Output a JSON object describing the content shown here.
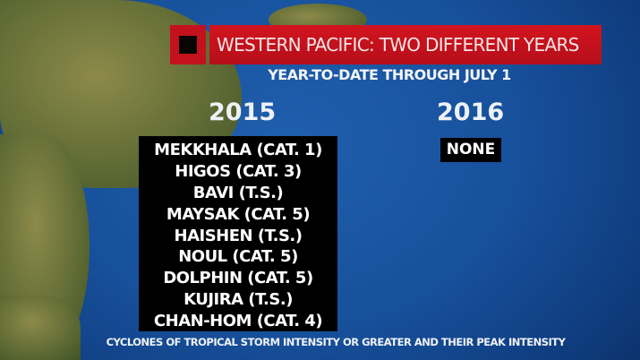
{
  "header": {
    "title": "WESTERN PACIFIC: TWO DIFFERENT YEARS",
    "subtitle": "YEAR-TO-DATE THROUGH JULY 1",
    "accent": "#c3121e"
  },
  "columns": [
    {
      "year": "2015",
      "storms": [
        "MEKKHALA (CAT. 1)",
        "HIGOS (CAT. 3)",
        "BAVI (T.S.)",
        "MAYSAK (CAT. 5)",
        "HAISHEN (T.S.)",
        "NOUL (CAT. 5)",
        "DOLPHIN (CAT. 5)",
        "KUJIRA (T.S.)",
        "CHAN-HOM (CAT. 4)"
      ]
    },
    {
      "year": "2016",
      "storms": [
        "NONE"
      ]
    }
  ],
  "footer": "CYCLONES OF TROPICAL STORM INTENSITY OR GREATER AND THEIR PEAK INTENSITY"
}
